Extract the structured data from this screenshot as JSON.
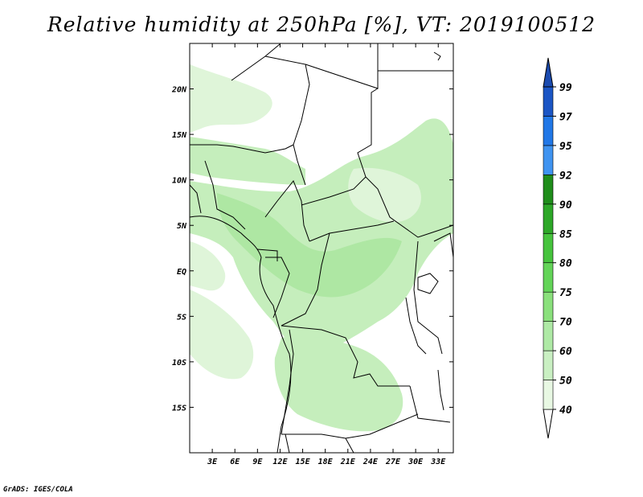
{
  "title": "Relative humidity at 250hPa [%], VT: 2019100512",
  "credit": "GrADS: IGES/COLA",
  "map": {
    "extent": {
      "lon": [
        0,
        35
      ],
      "lat": [
        -20,
        25
      ]
    },
    "lat_ticks": [
      {
        "value": 20,
        "label": "20N"
      },
      {
        "value": 15,
        "label": "15N"
      },
      {
        "value": 10,
        "label": "10N"
      },
      {
        "value": 5,
        "label": "5N"
      },
      {
        "value": 0,
        "label": "EQ"
      },
      {
        "value": -5,
        "label": "5S"
      },
      {
        "value": -10,
        "label": "10S"
      },
      {
        "value": -15,
        "label": "15S"
      }
    ],
    "lon_ticks": [
      {
        "value": 3,
        "label": "3E"
      },
      {
        "value": 6,
        "label": "6E"
      },
      {
        "value": 9,
        "label": "9E"
      },
      {
        "value": 12,
        "label": "12E"
      },
      {
        "value": 15,
        "label": "15E"
      },
      {
        "value": 18,
        "label": "18E"
      },
      {
        "value": 21,
        "label": "21E"
      },
      {
        "value": 24,
        "label": "24E"
      },
      {
        "value": 27,
        "label": "27E"
      },
      {
        "value": 30,
        "label": "30E"
      },
      {
        "value": 33,
        "label": "33E"
      }
    ]
  },
  "colorbar": {
    "levels": [
      "40",
      "50",
      "60",
      "70",
      "75",
      "80",
      "85",
      "90",
      "92",
      "95",
      "97",
      "99"
    ],
    "colors": [
      "#ffffff",
      "#e8f8e3",
      "#c9efc2",
      "#aee9a5",
      "#8ae07c",
      "#63d458",
      "#46c33d",
      "#2da728",
      "#1f8d1b",
      "#3f93f0",
      "#2177e6",
      "#1b55c4",
      "#1b4bb0"
    ]
  },
  "colors": {
    "light_green": "#dff5d9",
    "mid_green": "#c5eebc",
    "green": "#aee7a3",
    "border": "#000000"
  }
}
